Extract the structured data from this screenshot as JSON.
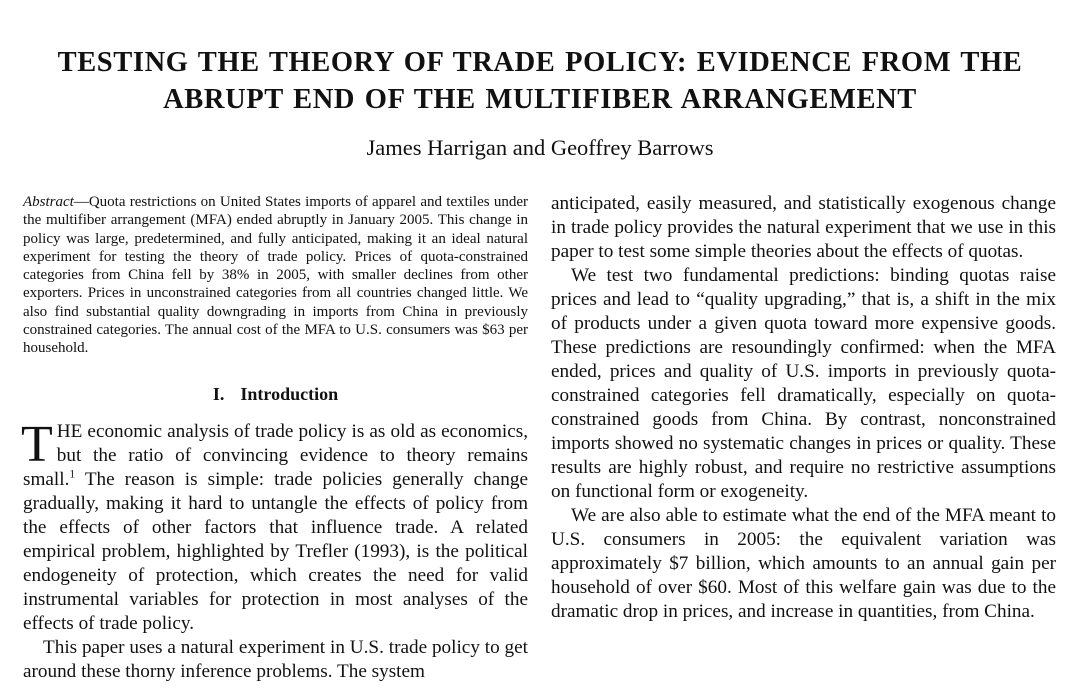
{
  "paper": {
    "title_line1": "TESTING THE THEORY OF TRADE POLICY: EVIDENCE FROM THE",
    "title_line2": "ABRUPT END OF THE MULTIFIBER ARRANGEMENT",
    "authors": "James Harrigan and Geoffrey Barrows"
  },
  "abstract": {
    "label": "Abstract",
    "text": "—Quota restrictions on United States imports of apparel and textiles under the multifiber arrangement (MFA) ended abruptly in Janu­ary 2005. This change in policy was large, predetermined, and fully anticipated, making it an ideal natural experiment for testing the theory of trade policy. Prices of quota-constrained categories from China fell by 38% in 2005, with smaller declines from other exporters. Prices in unconstrained categories from all countries changed little. We also find substantial quality downgrading in imports from China in previously constrained categories. The annual cost of the MFA to U.S. consumers was $63 per household."
  },
  "section": {
    "number": "I.",
    "title": "Introduction"
  },
  "intro": {
    "dropcap": "T",
    "p1_start": "HE economic analysis of trade policy is as old as economics, but the ratio of convincing evidence to theory remains small.",
    "footnote": "1",
    "p1_end": " The reason is simple: trade policies generally change gradually, making it hard to untangle the effects of policy from the effects of other factors that influence trade. A related empirical problem, highlighted by Trefler (1993), is the political endogeneity of protection, which creates the need for valid instrumental variables for protection in most analyses of the effects of trade policy.",
    "p2": "This paper uses a natural experiment in U.S. trade policy to get around these thorny inference problems. The system"
  },
  "right_column": {
    "p_continued": "anticipated, easily measured, and statistically exogenous change in trade policy provides the natural experiment that we use in this paper to test some simple theories about the effects of quotas.",
    "p_predictions": "We test two fundamental predictions: binding quotas raise prices and lead to “quality upgrading,” that is, a shift in the mix of products under a given quota toward more expensive goods. These predictions are resoundingly con­firmed: when the MFA ended, prices and quality of U.S. imports in previously quota-constrained categories fell dra­matically, especially on quota-constrained goods from China. By contrast, nonconstrained imports showed no systematic changes in prices or quality. These results are highly robust, and require no restrictive assumptions on functional form or exogeneity.",
    "p_welfare": "We are also able to estimate what the end of the MFA meant to U.S. consumers in 2005: the equivalent variation was approximately $7 billion, which amounts to an annual gain per household of over $60. Most of this welfare gain was due to the dramatic drop in prices, and increase in quantities, from China."
  }
}
